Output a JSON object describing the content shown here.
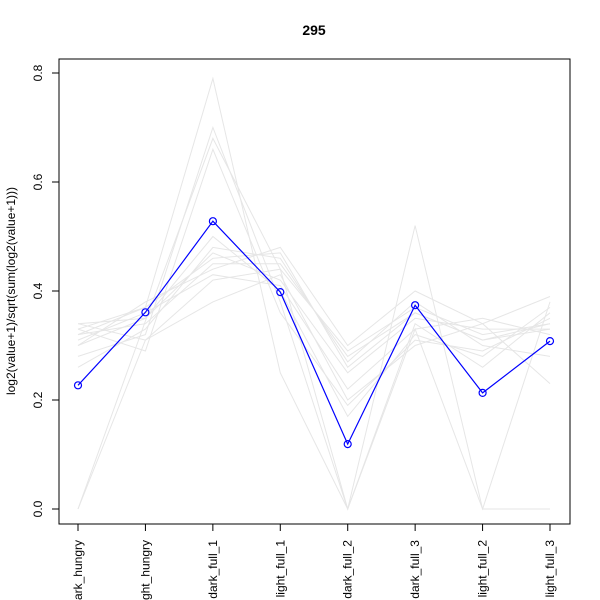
{
  "chart_data": {
    "type": "line",
    "title": "295",
    "xlabel": "",
    "ylabel": "log2(value+1)/sqrt(sum(log2(value+1)))",
    "categories": [
      "dark_hungry",
      "light_hungry",
      "dark_full_1",
      "light_full_1",
      "dark_full_2",
      "dark_full_3",
      "light_full_2",
      "light_full_3"
    ],
    "ylim": [
      -0.03,
      0.84
    ],
    "yticks": [
      0.0,
      0.2,
      0.4,
      0.6,
      0.8
    ],
    "ytick_labels": [
      "0.0",
      "0.2",
      "0.4",
      "0.6",
      "0.8"
    ],
    "highlight_color": "#0000ff",
    "background_color": "#e6e6e6",
    "highlight": {
      "values": [
        0.227,
        0.361,
        0.528,
        0.398,
        0.119,
        0.374,
        0.213,
        0.308
      ]
    },
    "background_series": [
      [
        0.0,
        0.345,
        0.68,
        0.44,
        0.0,
        0.33,
        0.0,
        0.38
      ],
      [
        0.33,
        0.37,
        0.79,
        0.25,
        0.0,
        0.52,
        0.0,
        0.0
      ],
      [
        0.3,
        0.38,
        0.44,
        0.48,
        0.3,
        0.4,
        0.34,
        0.39
      ],
      [
        0.32,
        0.34,
        0.45,
        0.45,
        0.28,
        0.36,
        0.31,
        0.34
      ],
      [
        0.34,
        0.35,
        0.47,
        0.42,
        0.25,
        0.35,
        0.33,
        0.33
      ],
      [
        0.28,
        0.32,
        0.7,
        0.38,
        0.0,
        0.34,
        0.26,
        0.36
      ],
      [
        0.31,
        0.36,
        0.43,
        0.41,
        0.22,
        0.33,
        0.35,
        0.32
      ],
      [
        0.33,
        0.29,
        0.66,
        0.36,
        0.19,
        0.31,
        0.29,
        0.35
      ],
      [
        0.26,
        0.33,
        0.48,
        0.46,
        0.27,
        0.38,
        0.3,
        0.28
      ],
      [
        0.34,
        0.31,
        0.42,
        0.44,
        0.29,
        0.37,
        0.32,
        0.34
      ],
      [
        0.3,
        0.35,
        0.5,
        0.4,
        0.17,
        0.32,
        0.28,
        0.37
      ],
      [
        0.0,
        0.31,
        0.38,
        0.43,
        0.2,
        0.3,
        0.34,
        0.23
      ],
      [
        0.32,
        0.37,
        0.46,
        0.47,
        0.26,
        0.36,
        0.31,
        0.33
      ]
    ]
  }
}
